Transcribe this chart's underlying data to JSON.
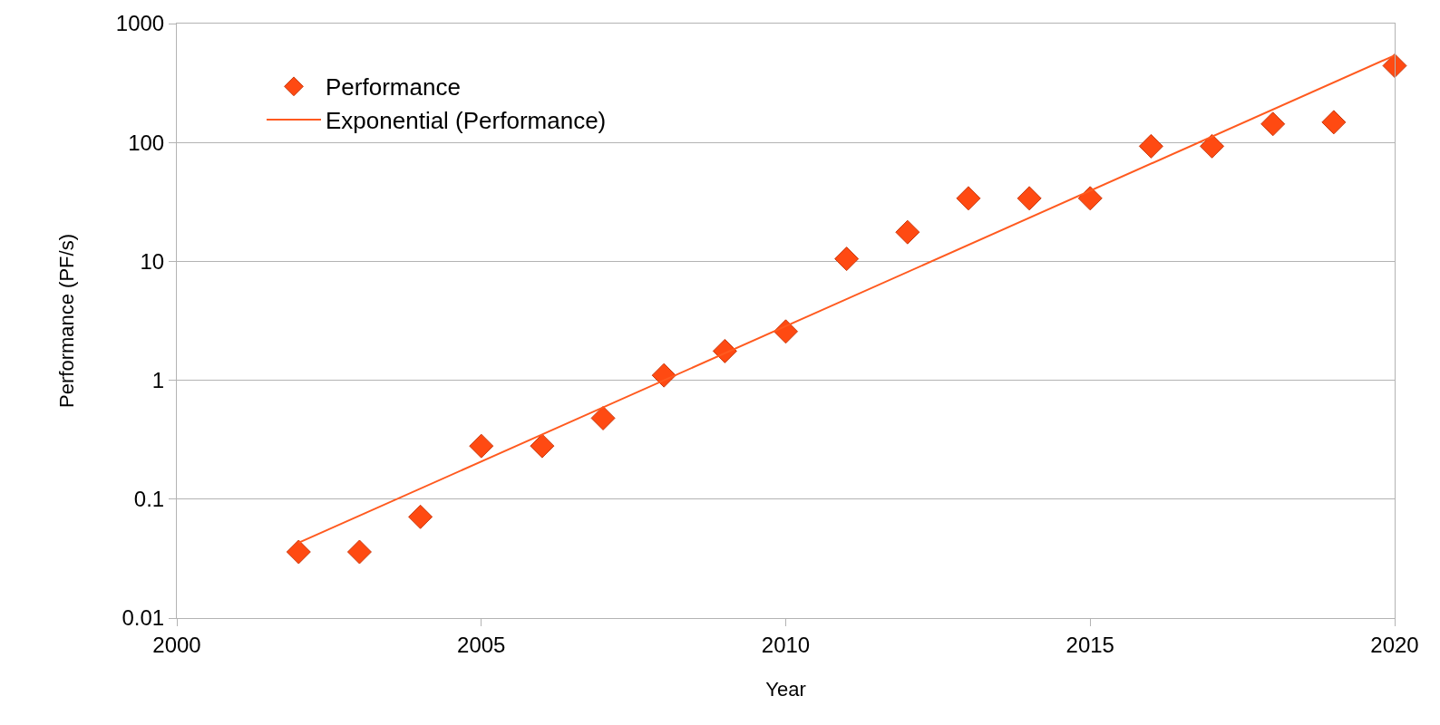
{
  "chart_data": {
    "type": "scatter",
    "xlabel": "Year",
    "ylabel": "Performance (PF/s)",
    "x": [
      2002,
      2003,
      2004,
      2005,
      2006,
      2007,
      2008,
      2009,
      2010,
      2011,
      2012,
      2013,
      2014,
      2015,
      2016,
      2017,
      2018,
      2019,
      2020
    ],
    "series": [
      {
        "name": "Performance",
        "color": "#ff4a12",
        "marker": "diamond",
        "values": [
          0.036,
          0.036,
          0.071,
          0.28,
          0.28,
          0.48,
          1.1,
          1.76,
          2.57,
          10.5,
          17.6,
          33.9,
          33.9,
          33.9,
          93,
          93,
          143,
          148,
          442
        ]
      },
      {
        "name": "Exponential (Performance)",
        "type": "line",
        "color": "#ff5a1f",
        "marker": "none",
        "line_style": "solid",
        "x": [
          2002,
          2020
        ],
        "values": [
          0.043,
          540
        ]
      }
    ],
    "log": "y",
    "xlim": [
      2000,
      2020
    ],
    "ylim": [
      0.01,
      1000
    ],
    "xticks": [
      2000,
      2005,
      2010,
      2015,
      2020
    ],
    "yticks": [
      0.01,
      0.1,
      1,
      10,
      100,
      1000
    ],
    "grid": "y",
    "legend": "top left"
  }
}
